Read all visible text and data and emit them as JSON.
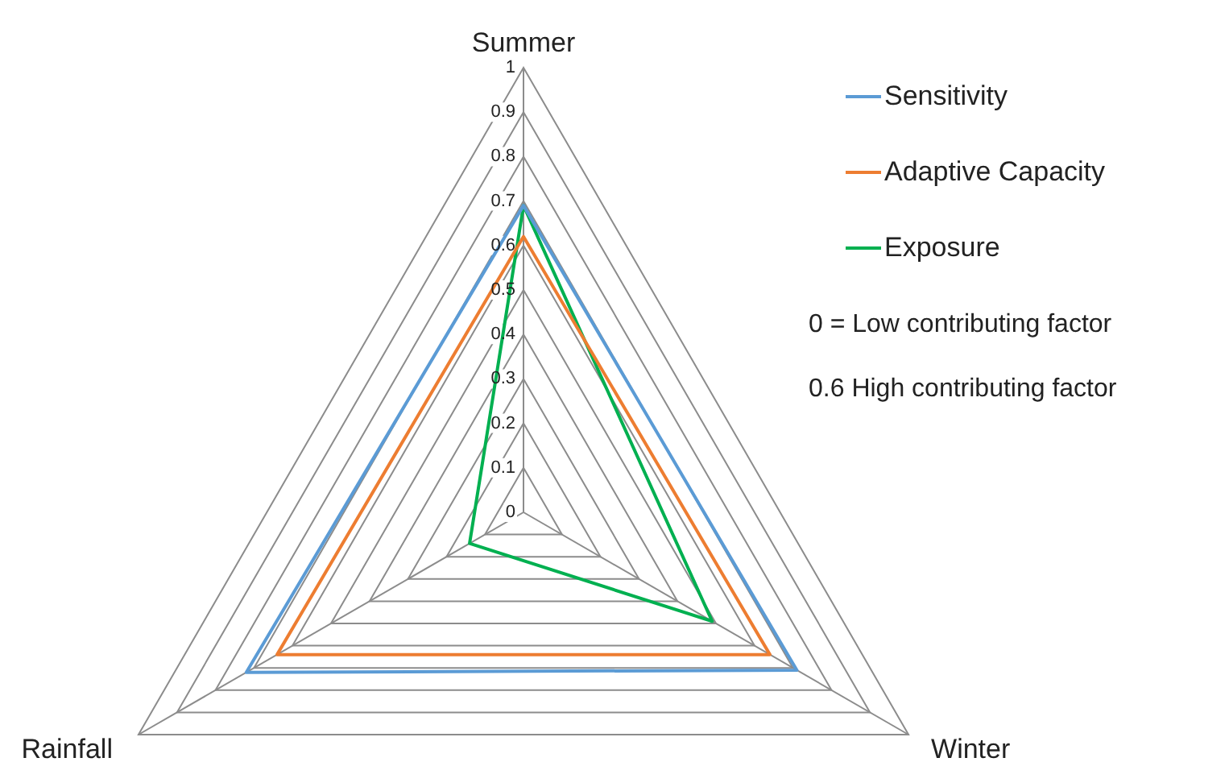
{
  "chart_data": {
    "type": "radar",
    "categories": [
      "Summer",
      "Winter",
      "Rainfall"
    ],
    "series": [
      {
        "name": "Sensitivity",
        "color": "#5b9bd5",
        "values": [
          0.69,
          0.71,
          0.72
        ]
      },
      {
        "name": "Adaptive Capacity",
        "color": "#ed7d31",
        "values": [
          0.62,
          0.64,
          0.64
        ]
      },
      {
        "name": "Exposure",
        "color": "#00b050",
        "values": [
          0.69,
          0.49,
          0.14
        ]
      }
    ],
    "ylim": [
      0,
      1
    ],
    "yticks": [
      0,
      0.1,
      0.2,
      0.3,
      0.4,
      0.5,
      0.6,
      0.7,
      0.8,
      0.9,
      1
    ],
    "grid": true,
    "legend": "top right",
    "marker": "none",
    "line_style": "solid",
    "annotations": [
      "0 = Low contributing factor",
      "0.6 High contributing factor"
    ]
  }
}
